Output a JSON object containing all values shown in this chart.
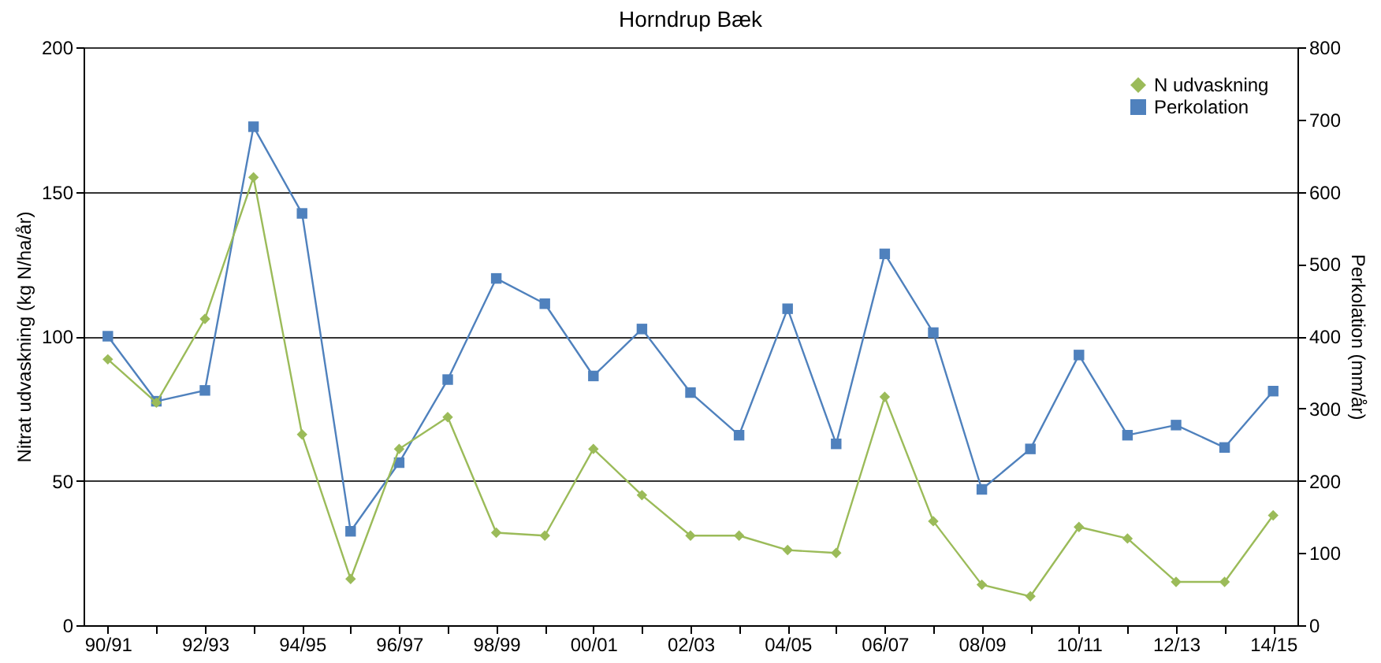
{
  "chart_data": {
    "type": "line",
    "title": "Horndrup Bæk",
    "ylabel": "Nitrat udvaskning (kg N/ha/år)",
    "y2label": "Perkolation (mm/år)",
    "categories": [
      "90/91",
      null,
      "92/93",
      null,
      "94/95",
      null,
      "96/97",
      null,
      "98/99",
      null,
      "00/01",
      null,
      "02/03",
      null,
      "04/05",
      null,
      "06/07",
      null,
      "08/09",
      null,
      "10/11",
      null,
      "12/13",
      null,
      "14/15"
    ],
    "series": [
      {
        "name": "N udvaskning",
        "color": "#9bbb59",
        "marker": "diamond",
        "values": [
          92,
          77,
          106,
          155,
          66,
          16,
          61,
          72,
          32,
          31,
          61,
          45,
          31,
          31,
          26,
          25,
          79,
          36,
          14,
          10,
          34,
          30,
          15,
          15,
          38
        ]
      },
      {
        "name": "Perkolation",
        "color": "#4f81bd",
        "marker": "square",
        "axis": "y2",
        "values": [
          400,
          310,
          325,
          690,
          570,
          130,
          225,
          340,
          480,
          445,
          345,
          410,
          322,
          263,
          438,
          251,
          514,
          405,
          188,
          244,
          374,
          263,
          277,
          246,
          324
        ]
      }
    ],
    "ylim": [
      0,
      200
    ],
    "yticks": [
      0,
      50,
      100,
      150,
      200
    ],
    "y2lim": [
      0,
      800
    ],
    "y2ticks": [
      0,
      100,
      200,
      300,
      400,
      500,
      600,
      700,
      800
    ],
    "grid": "y",
    "legend": "top right",
    "line_style": "solid"
  }
}
